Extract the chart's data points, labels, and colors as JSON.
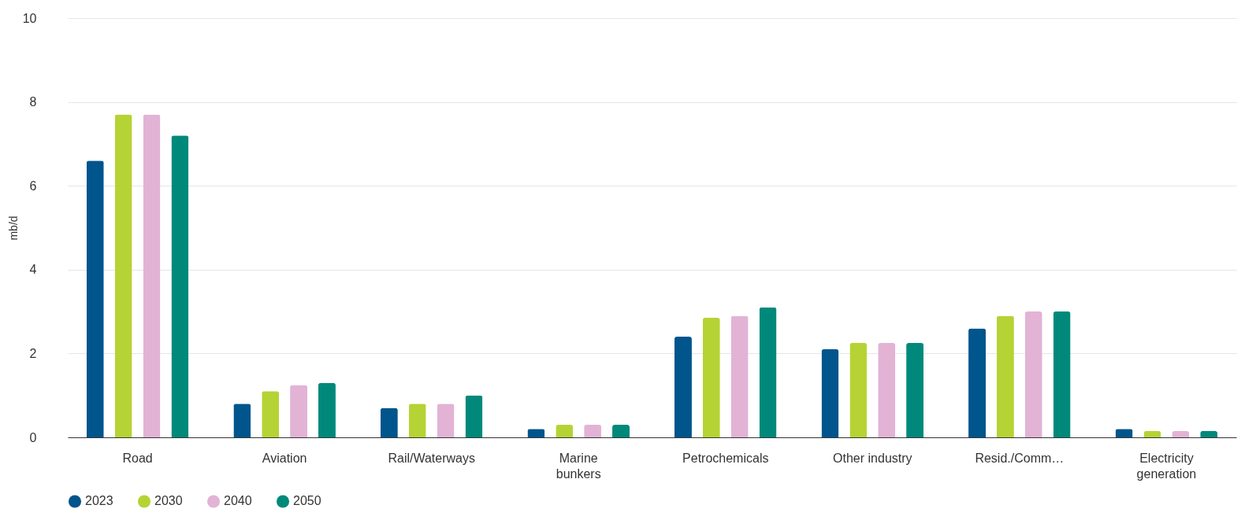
{
  "chart_data": {
    "type": "bar",
    "ylabel": "mb/d",
    "categories": [
      "Road",
      "Aviation",
      "Rail/Waterways",
      "Marine\nbunkers",
      "Petrochemicals",
      "Other industry",
      "Resid./Comm…",
      "Electricity\ngeneration"
    ],
    "series": [
      {
        "name": "2023",
        "color": "#00558c",
        "values": [
          6.6,
          0.8,
          0.7,
          0.2,
          2.4,
          2.1,
          2.6,
          0.2
        ]
      },
      {
        "name": "2030",
        "color": "#b5d334",
        "values": [
          7.7,
          1.1,
          0.8,
          0.3,
          2.85,
          2.25,
          2.9,
          0.15
        ]
      },
      {
        "name": "2040",
        "color": "#e2b3d5",
        "values": [
          7.7,
          1.25,
          0.8,
          0.3,
          2.9,
          2.25,
          3.0,
          0.15
        ]
      },
      {
        "name": "2050",
        "color": "#00897b",
        "values": [
          7.2,
          1.3,
          1.0,
          0.3,
          3.1,
          2.25,
          3.0,
          0.15
        ]
      }
    ],
    "ylim": [
      0,
      10
    ],
    "yticks": [
      0,
      2,
      4,
      6,
      8,
      10
    ],
    "grid": "y",
    "legend": "bottom"
  }
}
